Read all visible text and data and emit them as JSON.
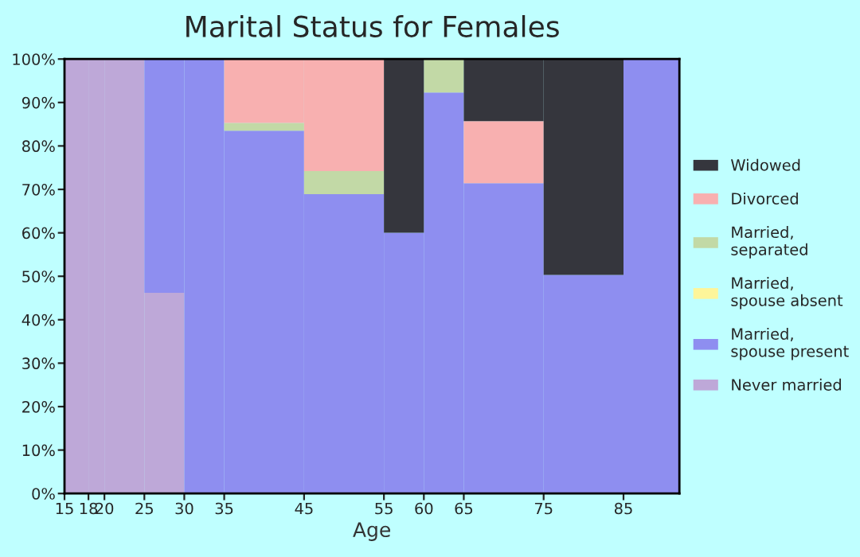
{
  "chart_data": {
    "type": "bar",
    "stacked": true,
    "title": "Marital Status for Females",
    "xlabel": "Age",
    "x": [
      16.5,
      19,
      22.5,
      27.5,
      32.5,
      40,
      50,
      57.5,
      62.5,
      70,
      80,
      88.5
    ],
    "xlim": [
      15,
      92
    ],
    "xticks": [
      15,
      18,
      20,
      25,
      30,
      35,
      45,
      55,
      60,
      65,
      75,
      85
    ],
    "ylim": [
      0,
      100
    ],
    "yticks": [
      {
        "value": 0,
        "label": "0%"
      },
      {
        "value": 10,
        "label": "10%"
      },
      {
        "value": 20,
        "label": "20%"
      },
      {
        "value": 30,
        "label": "30%"
      },
      {
        "value": 40,
        "label": "40%"
      },
      {
        "value": 50,
        "label": "50%"
      },
      {
        "value": 60,
        "label": "60%"
      },
      {
        "value": 70,
        "label": "70%"
      },
      {
        "value": 80,
        "label": "80%"
      },
      {
        "value": 90,
        "label": "90%"
      },
      {
        "value": 100,
        "label": "100%"
      }
    ],
    "legend": "right",
    "series": [
      {
        "name": "Never married",
        "color": "#bea8d8",
        "values": [
          100,
          100,
          100,
          46.2,
          0,
          0,
          0,
          0,
          0,
          0,
          0,
          0
        ]
      },
      {
        "name": "Married, spouse present",
        "color": "#8e8ef0",
        "values": [
          0,
          0,
          0,
          53.8,
          100,
          83.5,
          68.9,
          60,
          92.3,
          71.4,
          50.3,
          100
        ]
      },
      {
        "name": "Married, spouse absent",
        "color": "#fdf59a",
        "values": [
          0,
          0,
          0,
          0,
          0,
          0,
          0,
          0,
          0,
          0,
          0,
          0
        ]
      },
      {
        "name": "Married, separated",
        "color": "#c2d9a6",
        "values": [
          0,
          0,
          0,
          0,
          0,
          1.8,
          5.3,
          0,
          7.7,
          0,
          0,
          0
        ]
      },
      {
        "name": "Divorced",
        "color": "#f8b0b0",
        "values": [
          0,
          0,
          0,
          0,
          0,
          14.7,
          25.8,
          0,
          0,
          14.3,
          0,
          0
        ]
      },
      {
        "name": "Widowed",
        "color": "#35363d",
        "values": [
          0,
          0,
          0,
          0,
          0,
          0,
          0,
          40,
          0,
          14.3,
          49.7,
          0
        ]
      }
    ]
  }
}
